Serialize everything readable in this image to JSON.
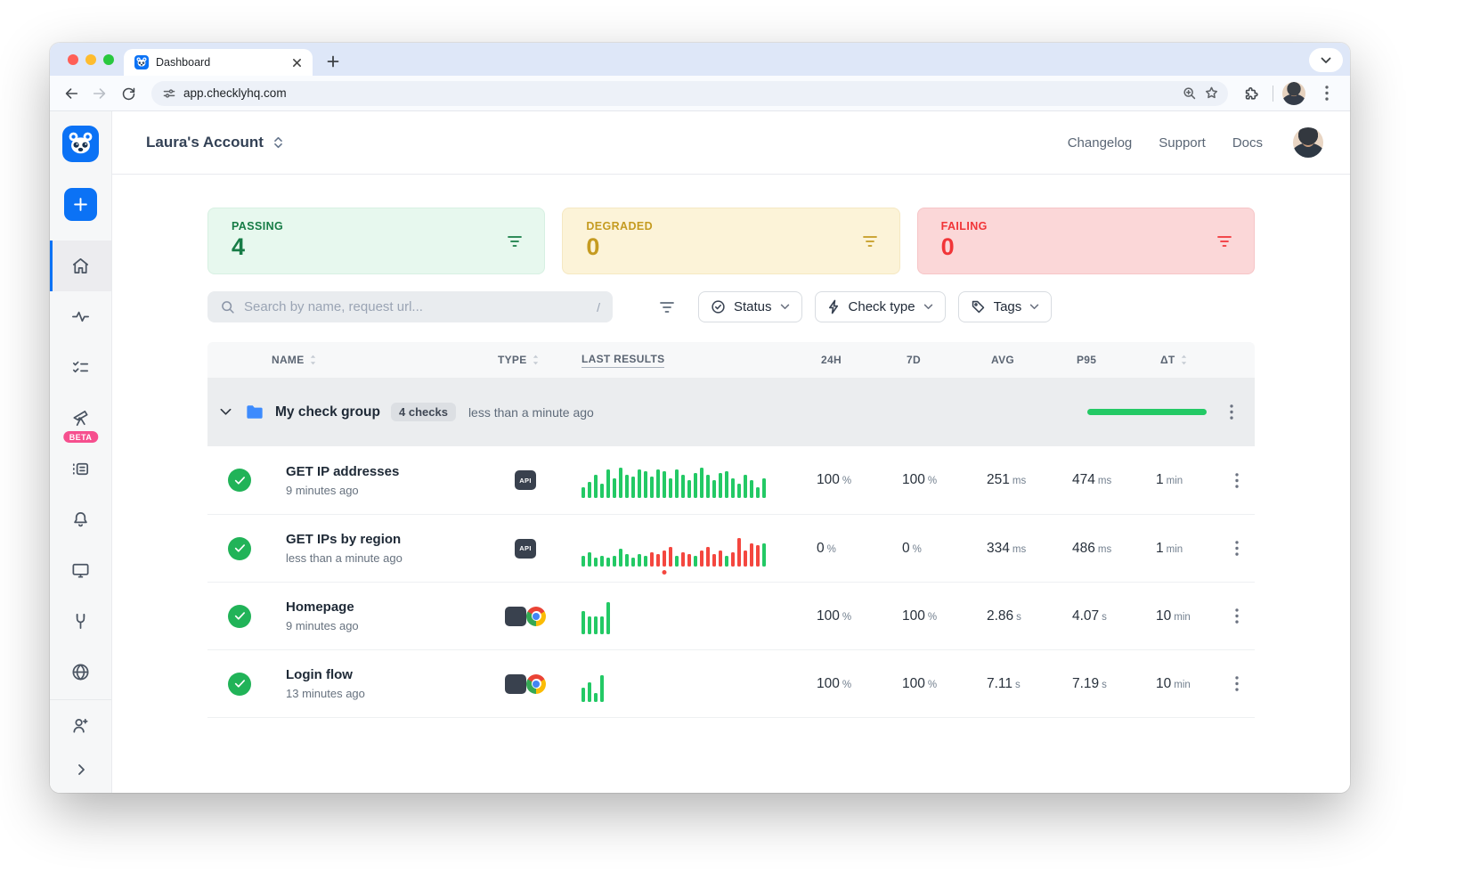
{
  "browser": {
    "tab": {
      "title": "Dashboard"
    },
    "url": "app.checklyhq.com"
  },
  "app_header": {
    "account": "Laura's Account",
    "nav": [
      {
        "label": "Changelog"
      },
      {
        "label": "Support"
      },
      {
        "label": "Docs"
      }
    ]
  },
  "sidebar": {
    "beta_badge": "BETA",
    "icons": [
      "checkly-logo",
      "plus",
      "home",
      "pulse",
      "checklist",
      "telescope",
      "runtimes-list",
      "bell",
      "monitor",
      "wrench",
      "globe",
      "user-plus",
      "chevron-right"
    ],
    "active_item": "home"
  },
  "summary_cards": [
    {
      "label": "PASSING",
      "value": "4"
    },
    {
      "label": "DEGRADED",
      "value": "0"
    },
    {
      "label": "FAILING",
      "value": "0"
    }
  ],
  "filters": {
    "search_placeholder": "Search by name, request url...",
    "shortcut": "/",
    "buttons": [
      {
        "label": "Status",
        "icon": "check-circle-icon"
      },
      {
        "label": "Check type",
        "icon": "bolt-icon"
      },
      {
        "label": "Tags",
        "icon": "tag-icon"
      }
    ]
  },
  "table": {
    "columns": [
      {
        "label": "NAME",
        "sortable": true
      },
      {
        "label": "TYPE",
        "sortable": true
      },
      {
        "label": "LAST RESULTS"
      },
      {
        "label": "24H"
      },
      {
        "label": "7D"
      },
      {
        "label": "AVG"
      },
      {
        "label": "P95"
      },
      {
        "label": "ΔT",
        "sortable": true
      }
    ],
    "group": {
      "name": "My check group",
      "badge": "4 checks",
      "updated": "less than a minute ago"
    },
    "rows": [
      {
        "name": "GET IP addresses",
        "updated": "9 minutes ago",
        "type_badge": "API",
        "h24": {
          "v": "100",
          "u": "%"
        },
        "d7": {
          "v": "100",
          "u": "%"
        },
        "avg": {
          "v": "251",
          "u": "ms"
        },
        "p95": {
          "v": "474",
          "u": "ms"
        },
        "dt": {
          "v": "1",
          "u": "min"
        },
        "bars": [
          [
            12,
            "p"
          ],
          [
            18,
            "p"
          ],
          [
            26,
            "p"
          ],
          [
            16,
            "p"
          ],
          [
            32,
            "p"
          ],
          [
            22,
            "p"
          ],
          [
            34,
            "p"
          ],
          [
            26,
            "p"
          ],
          [
            24,
            "p"
          ],
          [
            32,
            "p"
          ],
          [
            30,
            "p"
          ],
          [
            24,
            "p"
          ],
          [
            32,
            "p"
          ],
          [
            30,
            "p"
          ],
          [
            22,
            "p"
          ],
          [
            32,
            "p"
          ],
          [
            26,
            "p"
          ],
          [
            20,
            "p"
          ],
          [
            28,
            "p"
          ],
          [
            34,
            "p"
          ],
          [
            26,
            "p"
          ],
          [
            20,
            "p"
          ],
          [
            28,
            "p"
          ],
          [
            30,
            "p"
          ],
          [
            22,
            "p"
          ],
          [
            16,
            "p"
          ],
          [
            26,
            "p"
          ],
          [
            20,
            "p"
          ],
          [
            12,
            "p"
          ],
          [
            22,
            "p"
          ]
        ]
      },
      {
        "name": "GET IPs by region",
        "updated": "less than a minute ago",
        "type_badge": "API",
        "h24": {
          "v": "0",
          "u": "%"
        },
        "d7": {
          "v": "0",
          "u": "%"
        },
        "avg": {
          "v": "334",
          "u": "ms"
        },
        "p95": {
          "v": "486",
          "u": "ms"
        },
        "dt": {
          "v": "1",
          "u": "min"
        },
        "bars": [
          [
            12,
            "p"
          ],
          [
            16,
            "p"
          ],
          [
            10,
            "p"
          ],
          [
            12,
            "p"
          ],
          [
            10,
            "p"
          ],
          [
            12,
            "p"
          ],
          [
            20,
            "p"
          ],
          [
            14,
            "p"
          ],
          [
            10,
            "p"
          ],
          [
            14,
            "p"
          ],
          [
            12,
            "p"
          ],
          [
            16,
            "f"
          ],
          [
            14,
            "f"
          ],
          [
            18,
            "f"
          ],
          [
            22,
            "f"
          ],
          [
            12,
            "p"
          ],
          [
            16,
            "f"
          ],
          [
            14,
            "f"
          ],
          [
            12,
            "p"
          ],
          [
            18,
            "f"
          ],
          [
            22,
            "f"
          ],
          [
            14,
            "f"
          ],
          [
            18,
            "f"
          ],
          [
            12,
            "p"
          ],
          [
            16,
            "f"
          ],
          [
            32,
            "f"
          ],
          [
            18,
            "f"
          ],
          [
            26,
            "f"
          ],
          [
            24,
            "f"
          ],
          [
            26,
            "p"
          ]
        ],
        "dot_index": 13
      },
      {
        "name": "Homepage",
        "updated": "9 minutes ago",
        "type_icon": "chrome-icon",
        "h24": {
          "v": "100",
          "u": "%"
        },
        "d7": {
          "v": "100",
          "u": "%"
        },
        "avg": {
          "v": "2.86",
          "u": "s"
        },
        "p95": {
          "v": "4.07",
          "u": "s"
        },
        "dt": {
          "v": "10",
          "u": "min"
        },
        "bars": [
          [
            26,
            "p"
          ],
          [
            20,
            "p"
          ],
          [
            20,
            "p"
          ],
          [
            20,
            "p"
          ],
          [
            36,
            "p"
          ]
        ]
      },
      {
        "name": "Login flow",
        "updated": "13 minutes ago",
        "type_icon": "chrome-icon",
        "h24": {
          "v": "100",
          "u": "%"
        },
        "d7": {
          "v": "100",
          "u": "%"
        },
        "avg": {
          "v": "7.11",
          "u": "s"
        },
        "p95": {
          "v": "7.19",
          "u": "s"
        },
        "dt": {
          "v": "10",
          "u": "min"
        },
        "bars": [
          [
            16,
            "p"
          ],
          [
            22,
            "p"
          ],
          [
            10,
            "p"
          ],
          [
            30,
            "p"
          ]
        ]
      }
    ]
  },
  "colors": {
    "pass": "#23c965",
    "fail": "#f4473f",
    "accent": "#0b72f5",
    "passing_text": "#177c46",
    "degraded_text": "#c59b21",
    "failing_text": "#f13538"
  }
}
